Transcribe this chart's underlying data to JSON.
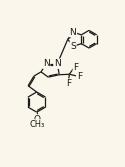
{
  "bg_color": "#fbf6ec",
  "line_color": "#1a1a1a",
  "line_width": 0.9,
  "font_size": 6.5,
  "fig_width": 1.25,
  "fig_height": 1.67,
  "dpi": 100,
  "xlim": [
    0,
    10
  ],
  "ylim": [
    0,
    13.4
  ]
}
